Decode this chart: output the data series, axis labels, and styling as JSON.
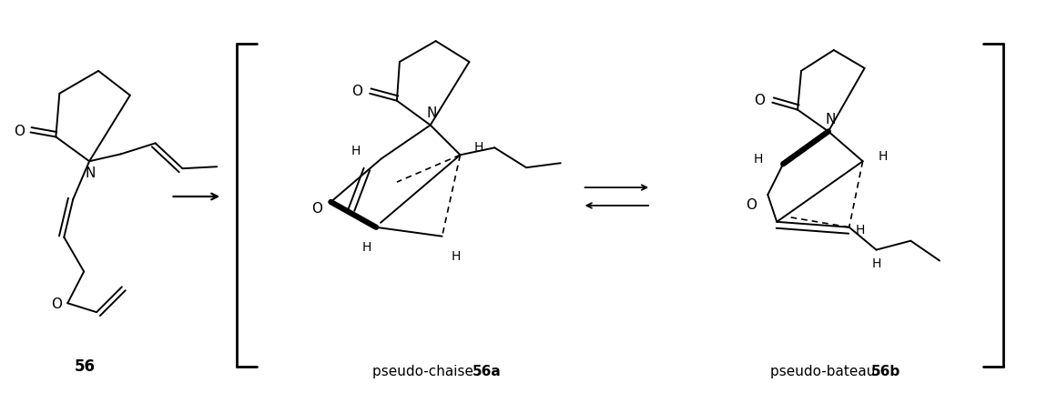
{
  "bg_color": "#ffffff",
  "text_color": "#000000",
  "label_56": "56",
  "label_56a_normal": "pseudo-chaise ",
  "label_56a_bold": "56a",
  "label_56b_normal": "pseudo-bateau ",
  "label_56b_bold": "56b",
  "fig_width": 11.61,
  "fig_height": 4.32,
  "dpi": 100
}
